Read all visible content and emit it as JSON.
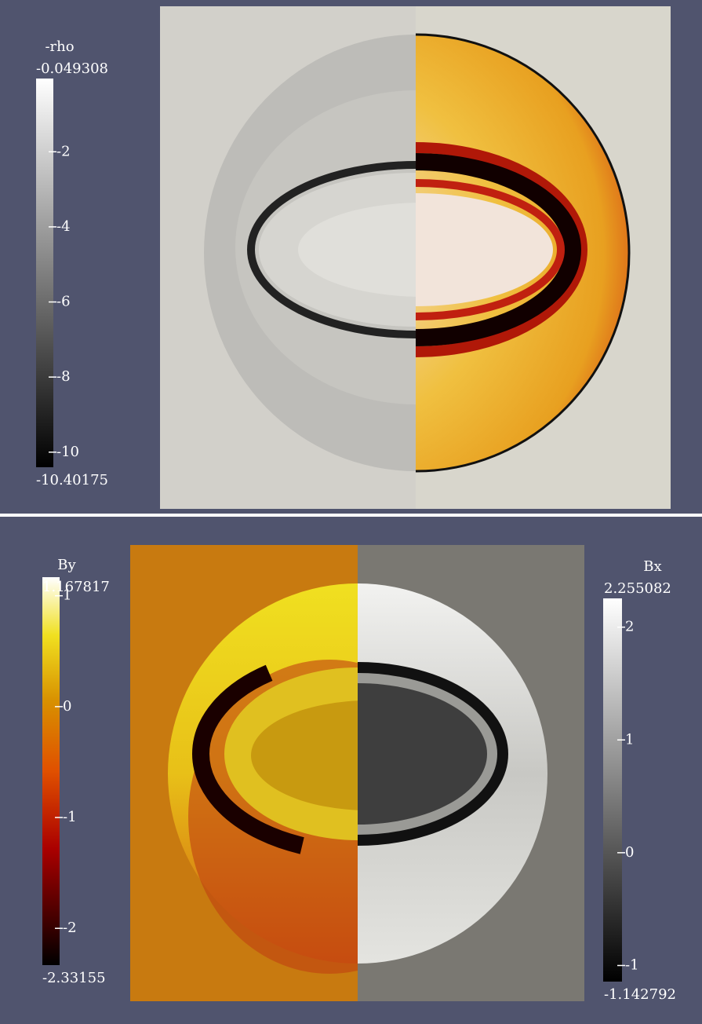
{
  "panels": [
    {
      "colorbars": [
        {
          "title": "-rho",
          "max": -0.049308,
          "min": -10.40175,
          "ticks": [
            -2,
            -4,
            -6,
            -8,
            -10
          ]
        }
      ]
    },
    {
      "colorbars": [
        {
          "title": "By",
          "max": 1.167817,
          "min": -2.33155,
          "ticks": [
            1,
            0,
            -1,
            -2
          ]
        },
        {
          "title": "Bx",
          "max": 2.255082,
          "min": -1.142792,
          "ticks": [
            2,
            1,
            0,
            -1
          ]
        }
      ]
    }
  ]
}
